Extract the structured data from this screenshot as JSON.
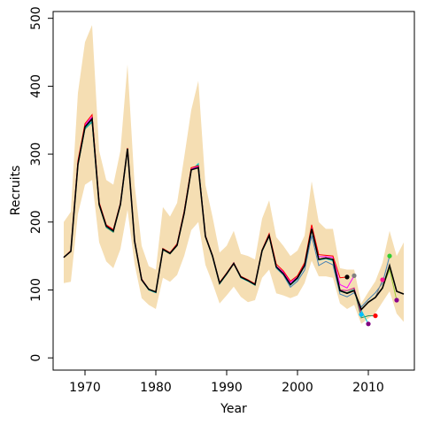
{
  "chart_data": {
    "type": "line",
    "xlabel": "Year",
    "ylabel": "Recruits",
    "xlim": [
      1965.5,
      2016.5
    ],
    "ylim": [
      -18,
      510
    ],
    "xticks": [
      1970,
      1980,
      1990,
      2000,
      2010
    ],
    "yticks": [
      0,
      100,
      200,
      300,
      400,
      500
    ],
    "grid": false,
    "colors": {
      "band": "#f5deb3",
      "main_line": "#000000",
      "retro_lines": [
        "#ff0000",
        "#ff00ff",
        "#c71585",
        "#00ced1",
        "#2e8b57",
        "#808080",
        "#4682b4",
        "#9acd32"
      ]
    },
    "band": {
      "x": [
        1967,
        1968,
        1969,
        1970,
        1971,
        1972,
        1973,
        1974,
        1975,
        1976,
        1977,
        1978,
        1979,
        1980,
        1981,
        1982,
        1983,
        1984,
        1985,
        1986,
        1987,
        1988,
        1989,
        1990,
        1991,
        1992,
        1993,
        1994,
        1995,
        1996,
        1997,
        1998,
        1999,
        2000,
        2001,
        2002,
        2003,
        2004,
        2005,
        2006,
        2007,
        2008,
        2009,
        2010,
        2011,
        2012,
        2013,
        2014,
        2015
      ],
      "upper": [
        200,
        215,
        390,
        465,
        490,
        305,
        262,
        255,
        305,
        432,
        255,
        165,
        135,
        130,
        222,
        208,
        228,
        295,
        365,
        408,
        255,
        208,
        155,
        165,
        187,
        153,
        150,
        145,
        205,
        232,
        178,
        165,
        150,
        158,
        180,
        260,
        200,
        190,
        190,
        132,
        130,
        130,
        80,
        97,
        113,
        140,
        187,
        150,
        170
      ],
      "lower": [
        110,
        112,
        212,
        255,
        262,
        170,
        142,
        132,
        160,
        218,
        138,
        88,
        78,
        72,
        118,
        112,
        122,
        150,
        188,
        200,
        137,
        110,
        80,
        92,
        105,
        90,
        82,
        85,
        118,
        130,
        95,
        92,
        88,
        92,
        110,
        143,
        120,
        120,
        118,
        80,
        72,
        78,
        50,
        58,
        66,
        82,
        98,
        65,
        53
      ]
    },
    "series": [
      {
        "x": [
          1967,
          1968,
          1969,
          1970,
          1971,
          1972,
          1973,
          1974,
          1975,
          1976,
          1977,
          1978,
          1979,
          1980,
          1981,
          1982,
          1983,
          1984,
          1985,
          1986,
          1987,
          1988,
          1989,
          1990,
          1991,
          1992,
          1993,
          1994,
          1995,
          1996,
          1997,
          1998,
          1999,
          2000,
          2001,
          2002,
          2003,
          2004,
          2005,
          2006,
          2007,
          2008,
          2009,
          2010,
          2011,
          2012,
          2013,
          2014,
          2015
        ],
        "values": [
          148,
          157,
          285,
          340,
          352,
          226,
          194,
          187,
          226,
          308,
          172,
          115,
          101,
          97,
          160,
          154,
          166,
          213,
          277,
          280,
          179,
          150,
          110,
          124,
          139,
          119,
          114,
          108,
          158,
          180,
          134,
          124,
          108,
          118,
          136,
          190,
          145,
          147,
          145,
          99,
          95,
          99,
          71,
          82,
          89,
          103,
          136,
          98,
          94
        ]
      },
      {
        "x": [
          1967,
          1968,
          1969,
          1970,
          1971,
          1972,
          1973,
          1974,
          1975,
          1976,
          1977,
          1978,
          1979,
          1980,
          1981,
          1982,
          1983,
          1984,
          1985,
          1986,
          1987,
          1988,
          1989,
          1990,
          1991,
          1992,
          1993,
          1994,
          1995,
          1996,
          1997,
          1998,
          1999,
          2000,
          2001,
          2002,
          2003,
          2004,
          2005,
          2006,
          2007
        ],
        "values": [
          148,
          158,
          290,
          345,
          358,
          229,
          196,
          189,
          228,
          309,
          173,
          116,
          101,
          97,
          161,
          155,
          168,
          216,
          280,
          283,
          180,
          151,
          111,
          125,
          140,
          120,
          115,
          109,
          159,
          183,
          138,
          128,
          113,
          121,
          140,
          196,
          152,
          151,
          150,
          118,
          119
        ]
      },
      {
        "x": [
          1967,
          1968,
          1969,
          1970,
          1971,
          1972,
          1973,
          1974,
          1975,
          1976,
          1977,
          1978,
          1979,
          1980,
          1981,
          1982,
          1983,
          1984,
          1985,
          1986,
          1987,
          1988,
          1989,
          1990,
          1991,
          1992,
          1993,
          1994,
          1995,
          1996,
          1997,
          1998,
          1999,
          2000,
          2001,
          2002,
          2003,
          2004,
          2005,
          2006,
          2007,
          2008
        ],
        "values": [
          148,
          157,
          288,
          343,
          355,
          228,
          195,
          188,
          227,
          308,
          173,
          116,
          101,
          97,
          160,
          155,
          167,
          215,
          278,
          282,
          180,
          150,
          111,
          124,
          140,
          119,
          114,
          109,
          158,
          181,
          135,
          126,
          111,
          119,
          138,
          192,
          149,
          149,
          148,
          108,
          103,
          121
        ]
      },
      {
        "x": [
          1967,
          1968,
          1969,
          1970,
          1971,
          1972,
          1973,
          1974,
          1975,
          1976,
          1977,
          1978,
          1979,
          1980,
          1981,
          1982,
          1983,
          1984,
          1985,
          1986,
          1987,
          1988,
          1989,
          1990,
          1991,
          1992,
          1993,
          1994,
          1995,
          1996,
          1997,
          1998,
          1999,
          2000,
          2001,
          2002,
          2003,
          2004,
          2005,
          2006,
          2007,
          2008,
          2009
        ],
        "values": [
          148,
          157,
          286,
          341,
          353,
          227,
          195,
          188,
          226,
          308,
          172,
          116,
          101,
          97,
          160,
          154,
          166,
          214,
          277,
          281,
          179,
          150,
          110,
          124,
          139,
          119,
          114,
          108,
          158,
          181,
          134,
          125,
          108,
          117,
          136,
          189,
          145,
          147,
          145,
          100,
          99,
          103,
          64
        ]
      },
      {
        "x": [
          1967,
          1968,
          1969,
          1970,
          1971,
          1972,
          1973,
          1974,
          1975,
          1976,
          1977,
          1978,
          1979,
          1980,
          1981,
          1982,
          1983,
          1984,
          1985,
          1986,
          1987,
          1988,
          1989,
          1990,
          1991,
          1992,
          1993,
          1994,
          1995,
          1996,
          1997,
          1998,
          1999,
          2000,
          2001,
          2002,
          2003,
          2004,
          2005,
          2006,
          2007,
          2008,
          2009,
          2010
        ],
        "values": [
          148,
          157,
          284,
          338,
          348,
          225,
          193,
          186,
          225,
          307,
          171,
          115,
          100,
          96,
          159,
          154,
          166,
          213,
          276,
          286,
          179,
          149,
          109,
          123,
          139,
          118,
          113,
          107,
          157,
          179,
          133,
          123,
          107,
          116,
          135,
          188,
          144,
          146,
          143,
          98,
          95,
          100,
          70,
          50
        ]
      },
      {
        "x": [
          1967,
          1968,
          1969,
          1970,
          1971,
          1972,
          1973,
          1974,
          1975,
          1976,
          1977,
          1978,
          1979,
          1980,
          1981,
          1982,
          1983,
          1984,
          1985,
          1986,
          1987,
          1988,
          1989,
          1990,
          1991,
          1992,
          1993,
          1994,
          1995,
          1996,
          1997,
          1998,
          1999,
          2000,
          2001,
          2002,
          2003,
          2004,
          2005,
          2006,
          2007,
          2008,
          2009,
          2010,
          2011
        ],
        "values": [
          148,
          157,
          284,
          337,
          347,
          224,
          192,
          185,
          225,
          306,
          171,
          115,
          100,
          96,
          159,
          153,
          165,
          212,
          276,
          285,
          178,
          149,
          109,
          123,
          139,
          118,
          113,
          107,
          157,
          180,
          133,
          124,
          108,
          117,
          136,
          189,
          145,
          147,
          145,
          99,
          96,
          101,
          59,
          62,
          62
        ]
      },
      {
        "x": [
          1967,
          1968,
          1969,
          1970,
          1971,
          1972,
          1973,
          1974,
          1975,
          1976,
          1977,
          1978,
          1979,
          1980,
          1981,
          1982,
          1983,
          1984,
          1985,
          1986,
          1987,
          1988,
          1989,
          1990,
          1991,
          1992,
          1993,
          1994,
          1995,
          1996,
          1997,
          1998,
          1999,
          2000,
          2001,
          2002,
          2003,
          2004,
          2005,
          2006,
          2007,
          2008,
          2009,
          2010,
          2011,
          2012
        ],
        "values": [
          148,
          157,
          285,
          339,
          350,
          226,
          194,
          187,
          226,
          307,
          172,
          116,
          101,
          97,
          160,
          154,
          166,
          213,
          277,
          280,
          179,
          150,
          110,
          124,
          139,
          119,
          114,
          108,
          158,
          180,
          134,
          124,
          108,
          118,
          136,
          190,
          145,
          147,
          145,
          99,
          95,
          99,
          71,
          82,
          89,
          115
        ]
      },
      {
        "x": [
          1967,
          1968,
          1969,
          1970,
          1971,
          1972,
          1973,
          1974,
          1975,
          1976,
          1977,
          1978,
          1979,
          1980,
          1981,
          1982,
          1983,
          1984,
          1985,
          1986,
          1987,
          1988,
          1989,
          1990,
          1991,
          1992,
          1993,
          1994,
          1995,
          1996,
          1997,
          1998,
          1999,
          2000,
          2001,
          2002,
          2003,
          2004,
          2005,
          2006,
          2007,
          2008,
          2009,
          2010,
          2011,
          2012,
          2013
        ],
        "values": [
          148,
          157,
          285,
          340,
          351,
          226,
          194,
          187,
          226,
          308,
          172,
          115,
          101,
          97,
          160,
          154,
          166,
          213,
          277,
          280,
          179,
          150,
          110,
          124,
          139,
          119,
          114,
          108,
          158,
          180,
          132,
          122,
          104,
          113,
          129,
          180,
          136,
          142,
          137,
          94,
          90,
          96,
          75,
          86,
          96,
          110,
          150
        ]
      },
      {
        "x": [
          1967,
          1968,
          1969,
          1970,
          1971,
          1972,
          1973,
          1974,
          1975,
          1976,
          1977,
          1978,
          1979,
          1980,
          1981,
          1982,
          1983,
          1984,
          1985,
          1986,
          1987,
          1988,
          1989,
          1990,
          1991,
          1992,
          1993,
          1994,
          1995,
          1996,
          1997,
          1998,
          1999,
          2000,
          2001,
          2002,
          2003,
          2004,
          2005,
          2006,
          2007,
          2008,
          2009,
          2010,
          2011,
          2012,
          2013,
          2014
        ],
        "values": [
          148,
          157,
          285,
          340,
          352,
          226,
          194,
          187,
          226,
          308,
          172,
          115,
          101,
          97,
          160,
          154,
          166,
          213,
          277,
          280,
          179,
          150,
          110,
          124,
          139,
          119,
          114,
          108,
          158,
          180,
          134,
          124,
          108,
          118,
          136,
          190,
          145,
          147,
          145,
          99,
          95,
          99,
          71,
          82,
          89,
          103,
          130,
          85
        ]
      }
    ],
    "endpoints": [
      {
        "x": 2007,
        "y": 119,
        "color": "#000000"
      },
      {
        "x": 2008,
        "y": 121,
        "color": "#808080"
      },
      {
        "x": 2009,
        "y": 64,
        "color": "#00bfff"
      },
      {
        "x": 2010,
        "y": 50,
        "color": "#800080"
      },
      {
        "x": 2011,
        "y": 62,
        "color": "#ff0000"
      },
      {
        "x": 2012,
        "y": 115,
        "color": "#ff1493"
      },
      {
        "x": 2013,
        "y": 150,
        "color": "#32cd32"
      },
      {
        "x": 2014,
        "y": 85,
        "color": "#8b008b"
      }
    ]
  }
}
